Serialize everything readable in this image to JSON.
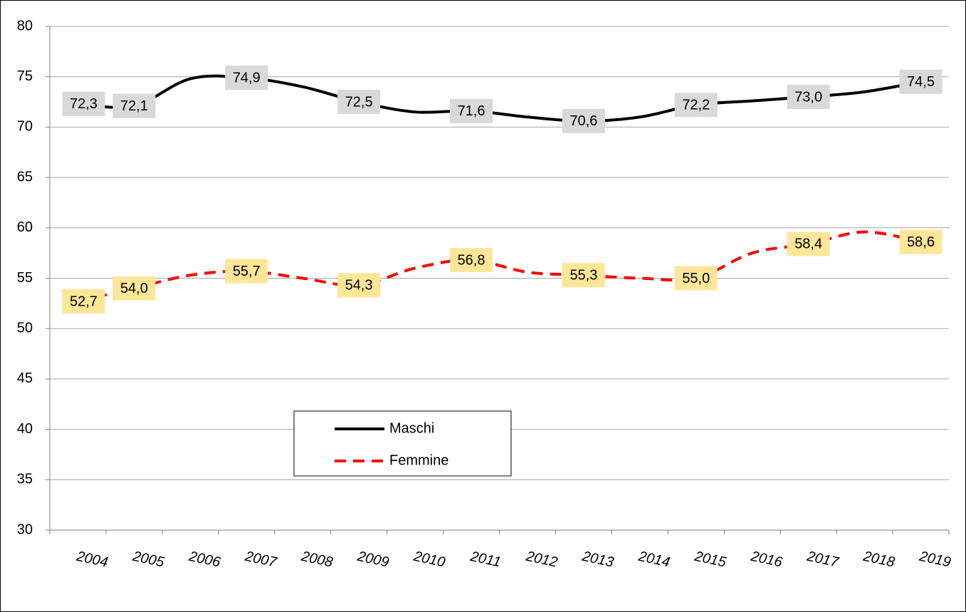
{
  "chart_data": {
    "type": "line",
    "categories": [
      "2004",
      "2005",
      "2006",
      "2007",
      "2008",
      "2009",
      "2010",
      "2011",
      "2012",
      "2013",
      "2014",
      "2015",
      "2016",
      "2017",
      "2018",
      "2019"
    ],
    "series": [
      {
        "name": "Maschi",
        "color": "#000000",
        "dash": false,
        "label_background": "#d9d9d9",
        "values": [
          72.3,
          72.1,
          74.8,
          74.9,
          74.0,
          72.5,
          71.5,
          71.6,
          71.0,
          70.6,
          71.0,
          72.2,
          72.6,
          73.0,
          73.5,
          74.5
        ],
        "value_labels": [
          "72,3",
          "72,1",
          null,
          "74,9",
          null,
          "72,5",
          null,
          "71,6",
          null,
          "70,6",
          null,
          "72,2",
          null,
          "73,0",
          null,
          "74,5"
        ]
      },
      {
        "name": "Femmine",
        "color": "#ff0000",
        "dash": true,
        "label_background": "#ffe699",
        "values": [
          52.7,
          54.0,
          55.3,
          55.7,
          55.0,
          54.3,
          56.0,
          56.8,
          55.6,
          55.3,
          55.0,
          55.0,
          57.5,
          58.4,
          59.6,
          58.6
        ],
        "value_labels": [
          "52,7",
          "54,0",
          null,
          "55,7",
          null,
          "54,3",
          null,
          "56,8",
          null,
          "55,3",
          null,
          "55,0",
          null,
          "58,4",
          null,
          "58,6"
        ]
      }
    ],
    "ylim": [
      30,
      80
    ],
    "yticks": [
      30,
      35,
      40,
      45,
      50,
      55,
      60,
      65,
      70,
      75,
      80
    ],
    "grid": true
  }
}
